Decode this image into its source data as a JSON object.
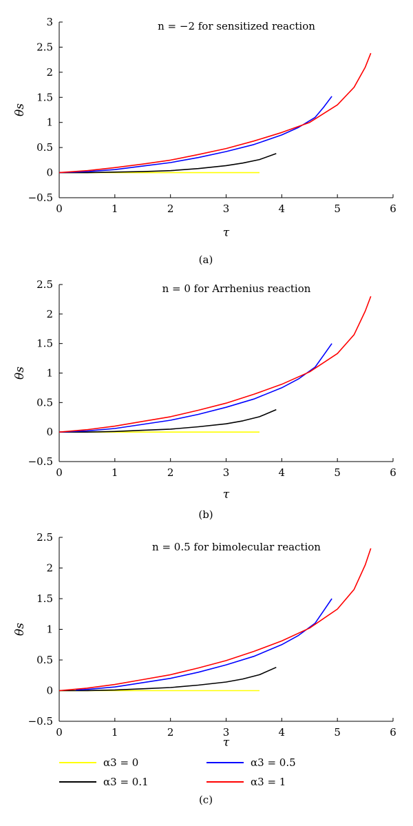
{
  "chart_data": [
    {
      "type": "line",
      "panel_label": "(a)",
      "annotation": "n = −2 for sensitized reaction",
      "xlabel": "τ",
      "ylabel": "θs",
      "xlim": [
        0,
        6
      ],
      "ylim": [
        -0.5,
        3
      ],
      "xticks": [
        "0",
        "1",
        "2",
        "3",
        "4",
        "5",
        "6"
      ],
      "yticks": [
        "−0.5",
        "0",
        "0.5",
        "1",
        "1.5",
        "2",
        "2.5",
        "3"
      ],
      "xtick_values": [
        0,
        1,
        2,
        3,
        4,
        5,
        6
      ],
      "ytick_values": [
        -0.5,
        0,
        0.5,
        1,
        1.5,
        2,
        2.5,
        3
      ],
      "series": [
        {
          "name": "α3 = 0",
          "color": "#ffff00",
          "x": [
            0,
            3.6
          ],
          "y": [
            0,
            0
          ]
        },
        {
          "name": "α3 = 0.1",
          "color": "#000000",
          "x": [
            0,
            0.5,
            1.0,
            1.5,
            2.0,
            2.5,
            3.0,
            3.3,
            3.6,
            3.9
          ],
          "y": [
            0,
            0,
            0.01,
            0.02,
            0.04,
            0.08,
            0.14,
            0.19,
            0.26,
            0.38
          ]
        },
        {
          "name": "α3 = 0.5",
          "color": "#0000ff",
          "x": [
            0,
            0.5,
            1.0,
            1.5,
            2.0,
            2.5,
            3.0,
            3.5,
            4.0,
            4.3,
            4.6,
            4.75,
            4.9
          ],
          "y": [
            0,
            0.02,
            0.06,
            0.13,
            0.2,
            0.3,
            0.42,
            0.56,
            0.75,
            0.9,
            1.1,
            1.3,
            1.52
          ]
        },
        {
          "name": "α3 = 1",
          "color": "#ff0000",
          "x": [
            0,
            0.5,
            1.0,
            1.5,
            2.0,
            2.5,
            3.0,
            3.5,
            4.0,
            4.5,
            5.0,
            5.3,
            5.5,
            5.6
          ],
          "y": [
            0,
            0.04,
            0.1,
            0.17,
            0.25,
            0.36,
            0.48,
            0.63,
            0.8,
            1.0,
            1.35,
            1.7,
            2.1,
            2.38
          ]
        }
      ]
    },
    {
      "type": "line",
      "panel_label": "(b)",
      "annotation": "n = 0 for Arrhenius reaction",
      "xlabel": "τ",
      "ylabel": "θs",
      "xlim": [
        0,
        6
      ],
      "ylim": [
        -0.5,
        2.5
      ],
      "xticks": [
        "0",
        "1",
        "2",
        "3",
        "4",
        "5",
        "6"
      ],
      "yticks": [
        "−0.5",
        "0",
        "0.5",
        "1",
        "1.5",
        "2",
        "2.5"
      ],
      "xtick_values": [
        0,
        1,
        2,
        3,
        4,
        5,
        6
      ],
      "ytick_values": [
        -0.5,
        0,
        0.5,
        1,
        1.5,
        2,
        2.5
      ],
      "series": [
        {
          "name": "α3 = 0",
          "color": "#ffff00",
          "x": [
            0,
            3.6
          ],
          "y": [
            0,
            0
          ]
        },
        {
          "name": "α3 = 0.1",
          "color": "#000000",
          "x": [
            0,
            0.5,
            1.0,
            1.5,
            2.0,
            2.5,
            3.0,
            3.3,
            3.6,
            3.9
          ],
          "y": [
            0,
            0,
            0.01,
            0.03,
            0.05,
            0.09,
            0.14,
            0.19,
            0.26,
            0.38
          ]
        },
        {
          "name": "α3 = 0.5",
          "color": "#0000ff",
          "x": [
            0,
            0.5,
            1.0,
            1.5,
            2.0,
            2.5,
            3.0,
            3.5,
            4.0,
            4.3,
            4.6,
            4.75,
            4.9
          ],
          "y": [
            0,
            0.02,
            0.06,
            0.13,
            0.2,
            0.3,
            0.42,
            0.56,
            0.75,
            0.9,
            1.1,
            1.3,
            1.5
          ]
        },
        {
          "name": "α3 = 1",
          "color": "#ff0000",
          "x": [
            0,
            0.5,
            1.0,
            1.5,
            2.0,
            2.5,
            3.0,
            3.5,
            4.0,
            4.5,
            5.0,
            5.3,
            5.5,
            5.6
          ],
          "y": [
            0,
            0.04,
            0.1,
            0.18,
            0.26,
            0.37,
            0.49,
            0.64,
            0.81,
            1.02,
            1.33,
            1.65,
            2.05,
            2.3
          ]
        }
      ]
    },
    {
      "type": "line",
      "panel_label": "(c)",
      "annotation": "n = 0.5 for bimolecular reaction",
      "xlabel": "τ",
      "ylabel": "θs",
      "xlim": [
        0,
        6
      ],
      "ylim": [
        -0.5,
        2.5
      ],
      "xticks": [
        "0",
        "1",
        "2",
        "3",
        "4",
        "5",
        "6"
      ],
      "yticks": [
        "−0.5",
        "0",
        "0.5",
        "1",
        "1.5",
        "2",
        "2.5"
      ],
      "xtick_values": [
        0,
        1,
        2,
        3,
        4,
        5,
        6
      ],
      "ytick_values": [
        -0.5,
        0,
        0.5,
        1,
        1.5,
        2,
        2.5
      ],
      "series": [
        {
          "name": "α3 = 0",
          "color": "#ffff00",
          "x": [
            0,
            3.6
          ],
          "y": [
            0,
            0
          ]
        },
        {
          "name": "α3 = 0.1",
          "color": "#000000",
          "x": [
            0,
            0.5,
            1.0,
            1.5,
            2.0,
            2.5,
            3.0,
            3.3,
            3.6,
            3.9
          ],
          "y": [
            0,
            0,
            0.01,
            0.03,
            0.05,
            0.09,
            0.14,
            0.19,
            0.26,
            0.38
          ]
        },
        {
          "name": "α3 = 0.5",
          "color": "#0000ff",
          "x": [
            0.3,
            0.5,
            1.0,
            1.5,
            2.0,
            2.5,
            3.0,
            3.5,
            4.0,
            4.3,
            4.6,
            4.75,
            4.9
          ],
          "y": [
            0.01,
            0.02,
            0.06,
            0.13,
            0.2,
            0.3,
            0.42,
            0.56,
            0.75,
            0.9,
            1.1,
            1.3,
            1.5
          ]
        },
        {
          "name": "α3 = 1",
          "color": "#ff0000",
          "x": [
            0,
            0.5,
            1.0,
            1.5,
            2.0,
            2.5,
            3.0,
            3.5,
            4.0,
            4.5,
            5.0,
            5.3,
            5.5,
            5.6
          ],
          "y": [
            0,
            0.04,
            0.1,
            0.18,
            0.26,
            0.37,
            0.49,
            0.64,
            0.81,
            1.02,
            1.33,
            1.65,
            2.05,
            2.32
          ]
        }
      ]
    }
  ],
  "legend": {
    "placement": "bottom",
    "entries": [
      {
        "label": "α3 = 0",
        "color": "#ffff00"
      },
      {
        "label": "α3 = 0.5",
        "color": "#0000ff"
      },
      {
        "label": "α3 = 0.1",
        "color": "#000000"
      },
      {
        "label": "α3 = 1",
        "color": "#ff0000"
      }
    ]
  }
}
